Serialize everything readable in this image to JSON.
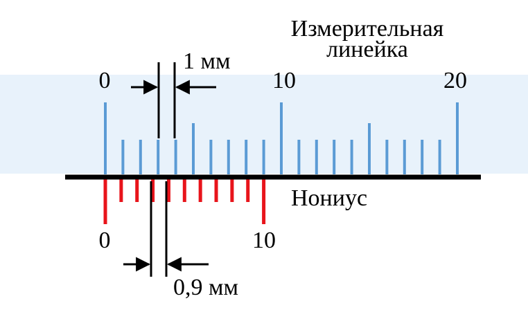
{
  "title_line1": "Измерительная",
  "title_line2": "линейка",
  "main_scale": {
    "label_0": "0",
    "label_10": "10",
    "label_20": "20",
    "min": 0,
    "max": 20,
    "unit_mm": 1,
    "band_color": "#e8f2fb",
    "tick_color": "#5b9bd5"
  },
  "vernier": {
    "label": "Нониус",
    "label_0": "0",
    "label_10": "10",
    "divisions": 10,
    "division_mm": 0.9,
    "tick_color": "#e8141b"
  },
  "dimension_main": "1 мм",
  "dimension_vernier": "0,9 мм",
  "baseline_color": "#000000"
}
